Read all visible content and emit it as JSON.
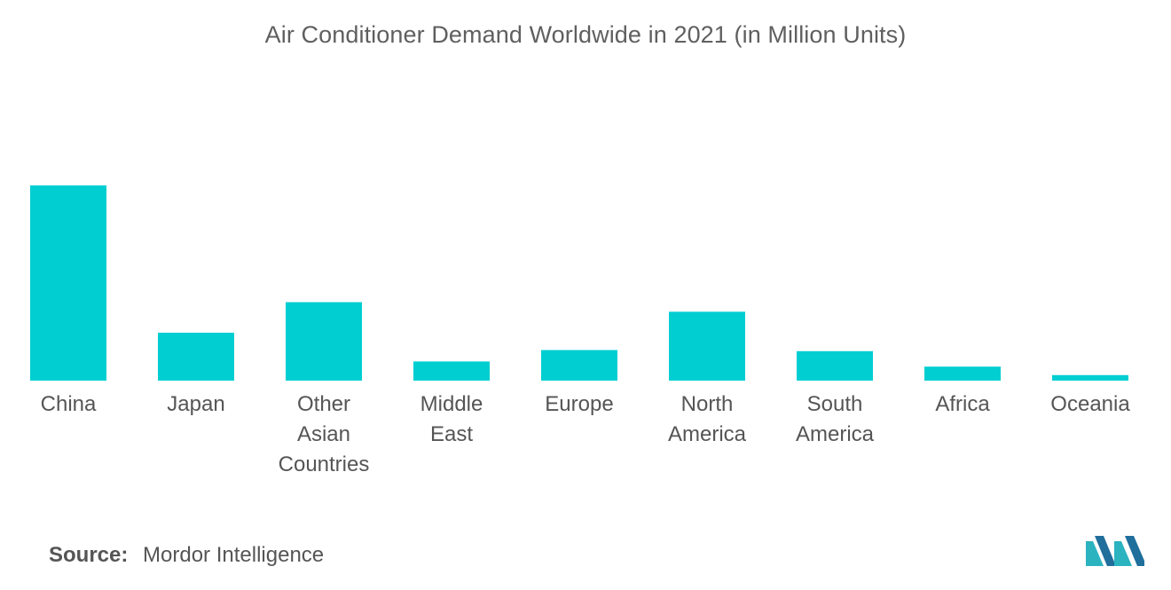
{
  "chart_data": {
    "type": "bar",
    "title": "Air Conditioner Demand Worldwide in 2021 (in Million Units)",
    "categories": [
      [
        "China"
      ],
      [
        "Japan"
      ],
      [
        "Other",
        "Asian",
        "Countries"
      ],
      [
        "Middle",
        "East"
      ],
      [
        "Europe"
      ],
      [
        "North",
        "America"
      ],
      [
        "South",
        "America"
      ],
      [
        "Africa"
      ],
      [
        "Oceania"
      ]
    ],
    "values": [
      53.0,
      13.0,
      21.3,
      5.2,
      8.3,
      18.7,
      8.0,
      3.8,
      1.5
    ],
    "xlabel": "",
    "ylabel": "",
    "ylim": [
      0,
      53
    ],
    "grid": false,
    "legend": "none",
    "bar_color": "#00CED1"
  },
  "footer": {
    "source_label": "Source:",
    "source_value": "Mordor Intelligence"
  },
  "logo": {
    "icon": "mordor-intelligence-logo-icon",
    "colors": [
      "#2BB3C0",
      "#1F6E9C"
    ]
  }
}
